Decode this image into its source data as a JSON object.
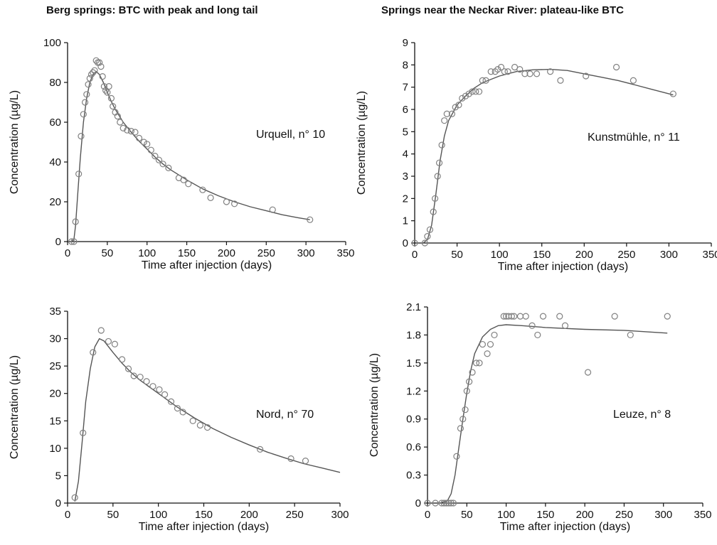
{
  "titles": {
    "left": "Berg springs: BTC with peak and long tail",
    "right": "Springs near the Neckar River: plateau-like BTC"
  },
  "colors": {
    "axis": "#111111",
    "curve": "#555555",
    "marker": "#808080"
  },
  "chart_data": [
    {
      "type": "scatter",
      "annotation": "Urquell, n° 10",
      "xlabel": "Time after injection (days)",
      "ylabel": "Concentration (µg/L)",
      "xlim": [
        0,
        350
      ],
      "ylim": [
        0,
        100
      ],
      "xticks": [
        0,
        50,
        100,
        150,
        200,
        250,
        300,
        350
      ],
      "yticks": [
        0,
        20,
        40,
        60,
        80,
        100
      ],
      "observed": [
        [
          5,
          0
        ],
        [
          8,
          0
        ],
        [
          10,
          10
        ],
        [
          14,
          34
        ],
        [
          17,
          53
        ],
        [
          20,
          64
        ],
        [
          22,
          70
        ],
        [
          24,
          74
        ],
        [
          26,
          79
        ],
        [
          28,
          82
        ],
        [
          30,
          84
        ],
        [
          32,
          85
        ],
        [
          34,
          86
        ],
        [
          36,
          91
        ],
        [
          38,
          90
        ],
        [
          40,
          90
        ],
        [
          42,
          88
        ],
        [
          44,
          83
        ],
        [
          46,
          78
        ],
        [
          48,
          76
        ],
        [
          50,
          75
        ],
        [
          52,
          78
        ],
        [
          55,
          72
        ],
        [
          57,
          68
        ],
        [
          60,
          65
        ],
        [
          63,
          63
        ],
        [
          66,
          60
        ],
        [
          70,
          57
        ],
        [
          75,
          56
        ],
        [
          80,
          55.5
        ],
        [
          85,
          55
        ],
        [
          90,
          52
        ],
        [
          96,
          50
        ],
        [
          100,
          49
        ],
        [
          105,
          46
        ],
        [
          110,
          43
        ],
        [
          115,
          41
        ],
        [
          120,
          39
        ],
        [
          127,
          37
        ],
        [
          140,
          32
        ],
        [
          146,
          31
        ],
        [
          152,
          29
        ],
        [
          170,
          26
        ],
        [
          180,
          22
        ],
        [
          200,
          20
        ],
        [
          210,
          19
        ],
        [
          258,
          16
        ],
        [
          305,
          11
        ]
      ],
      "fitted": [
        [
          5,
          0
        ],
        [
          8,
          1
        ],
        [
          10,
          8
        ],
        [
          13,
          25
        ],
        [
          16,
          42
        ],
        [
          20,
          60
        ],
        [
          24,
          72
        ],
        [
          28,
          80
        ],
        [
          32,
          84
        ],
        [
          36,
          85.5
        ],
        [
          40,
          84
        ],
        [
          45,
          80
        ],
        [
          50,
          75
        ],
        [
          55,
          70.5
        ],
        [
          60,
          66.5
        ],
        [
          70,
          60
        ],
        [
          80,
          55
        ],
        [
          90,
          50.5
        ],
        [
          100,
          46.5
        ],
        [
          110,
          42.5
        ],
        [
          120,
          39
        ],
        [
          130,
          36
        ],
        [
          140,
          33.5
        ],
        [
          150,
          31
        ],
        [
          170,
          26.5
        ],
        [
          190,
          23
        ],
        [
          210,
          20
        ],
        [
          230,
          17.5
        ],
        [
          250,
          15.5
        ],
        [
          270,
          13.5
        ],
        [
          290,
          12
        ],
        [
          305,
          11
        ]
      ]
    },
    {
      "type": "scatter",
      "annotation": "Kunstmühle, n° 11",
      "xlabel": "Time after injection (days)",
      "ylabel": "Concentration (µg/L)",
      "xlim": [
        0,
        350
      ],
      "ylim": [
        0,
        9
      ],
      "xticks": [
        0,
        50,
        100,
        150,
        200,
        250,
        300,
        350
      ],
      "yticks": [
        0,
        1,
        2,
        3,
        4,
        5,
        6,
        7,
        8,
        9
      ],
      "observed": [
        [
          0,
          0
        ],
        [
          12,
          0
        ],
        [
          15,
          0.3
        ],
        [
          18,
          0.6
        ],
        [
          22,
          1.4
        ],
        [
          24,
          2
        ],
        [
          27,
          3
        ],
        [
          29,
          3.6
        ],
        [
          32,
          4.4
        ],
        [
          35,
          5.5
        ],
        [
          38,
          5.8
        ],
        [
          44,
          5.8
        ],
        [
          48,
          6.1
        ],
        [
          52,
          6.2
        ],
        [
          56,
          6.5
        ],
        [
          60,
          6.6
        ],
        [
          64,
          6.7
        ],
        [
          68,
          6.8
        ],
        [
          72,
          6.8
        ],
        [
          76,
          6.8
        ],
        [
          80,
          7.3
        ],
        [
          84,
          7.3
        ],
        [
          90,
          7.7
        ],
        [
          95,
          7.7
        ],
        [
          98,
          7.8
        ],
        [
          102,
          7.9
        ],
        [
          106,
          7.7
        ],
        [
          110,
          7.7
        ],
        [
          118,
          7.9
        ],
        [
          124,
          7.8
        ],
        [
          130,
          7.6
        ],
        [
          136,
          7.6
        ],
        [
          144,
          7.6
        ],
        [
          160,
          7.7
        ],
        [
          172,
          7.3
        ],
        [
          202,
          7.5
        ],
        [
          238,
          7.9
        ],
        [
          258,
          7.3
        ],
        [
          305,
          6.7
        ]
      ],
      "fitted": [
        [
          10,
          0
        ],
        [
          15,
          0.15
        ],
        [
          20,
          0.8
        ],
        [
          25,
          2.2
        ],
        [
          30,
          3.7
        ],
        [
          35,
          4.8
        ],
        [
          40,
          5.5
        ],
        [
          50,
          6.2
        ],
        [
          60,
          6.6
        ],
        [
          70,
          6.95
        ],
        [
          80,
          7.2
        ],
        [
          100,
          7.5
        ],
        [
          120,
          7.7
        ],
        [
          140,
          7.78
        ],
        [
          160,
          7.8
        ],
        [
          180,
          7.75
        ],
        [
          200,
          7.6
        ],
        [
          220,
          7.45
        ],
        [
          240,
          7.3
        ],
        [
          260,
          7.1
        ],
        [
          280,
          6.9
        ],
        [
          305,
          6.65
        ]
      ]
    },
    {
      "type": "scatter",
      "annotation": "Nord, n° 70",
      "xlabel": "Time after injection (days)",
      "ylabel": "Concentration (µg/L)",
      "xlim": [
        0,
        300
      ],
      "ylim": [
        0,
        35
      ],
      "xticks": [
        0,
        50,
        100,
        150,
        200,
        250,
        300
      ],
      "yticks": [
        0,
        5,
        10,
        15,
        20,
        25,
        30,
        35
      ],
      "observed": [
        [
          8,
          1
        ],
        [
          17,
          12.8
        ],
        [
          28,
          27.5
        ],
        [
          37,
          31.5
        ],
        [
          45,
          29.5
        ],
        [
          52,
          29
        ],
        [
          60,
          26.2
        ],
        [
          67,
          24.5
        ],
        [
          73,
          23.2
        ],
        [
          80,
          23
        ],
        [
          87,
          22.2
        ],
        [
          94,
          21.3
        ],
        [
          101,
          20.7
        ],
        [
          107,
          19.8
        ],
        [
          114,
          18.5
        ],
        [
          121,
          17.3
        ],
        [
          127,
          16.6
        ],
        [
          138,
          15
        ],
        [
          146,
          14.2
        ],
        [
          154,
          13.8
        ],
        [
          212,
          9.8
        ],
        [
          246,
          8.1
        ],
        [
          262,
          7.7
        ]
      ],
      "fitted": [
        [
          8,
          0.3
        ],
        [
          12,
          4
        ],
        [
          16,
          11
        ],
        [
          20,
          18.5
        ],
        [
          25,
          24.5
        ],
        [
          30,
          28.5
        ],
        [
          35,
          30
        ],
        [
          40,
          29.6
        ],
        [
          50,
          27.5
        ],
        [
          60,
          25.5
        ],
        [
          70,
          23.8
        ],
        [
          80,
          22.4
        ],
        [
          90,
          21.2
        ],
        [
          100,
          20
        ],
        [
          120,
          17.6
        ],
        [
          140,
          15.5
        ],
        [
          160,
          13.6
        ],
        [
          180,
          12
        ],
        [
          200,
          10.6
        ],
        [
          220,
          9.3
        ],
        [
          240,
          8.2
        ],
        [
          260,
          7.2
        ],
        [
          280,
          6.4
        ],
        [
          300,
          5.6
        ]
      ]
    },
    {
      "type": "scatter",
      "annotation": "Leuze, n° 8",
      "xlabel": "Time after injection (days)",
      "ylabel": "Concentration (µg/L)",
      "xlim": [
        0,
        350
      ],
      "ylim": [
        0,
        2.1
      ],
      "xticks": [
        0,
        50,
        100,
        150,
        200,
        250,
        300,
        350
      ],
      "yticks": [
        "0",
        "0.3",
        "0.6",
        "0.9",
        "1.2",
        "1.5",
        "1.8",
        "2.1"
      ],
      "observed": [
        [
          0,
          0
        ],
        [
          10,
          0
        ],
        [
          18,
          0
        ],
        [
          21,
          0
        ],
        [
          24,
          0
        ],
        [
          27,
          0
        ],
        [
          30,
          0
        ],
        [
          33,
          0
        ],
        [
          37,
          0.5
        ],
        [
          42,
          0.8
        ],
        [
          45,
          0.9
        ],
        [
          48,
          1
        ],
        [
          50,
          1.2
        ],
        [
          53,
          1.3
        ],
        [
          57,
          1.4
        ],
        [
          62,
          1.5
        ],
        [
          66,
          1.5
        ],
        [
          70,
          1.7
        ],
        [
          76,
          1.6
        ],
        [
          80,
          1.7
        ],
        [
          85,
          1.8
        ],
        [
          97,
          2
        ],
        [
          100,
          2
        ],
        [
          103,
          2
        ],
        [
          107,
          2
        ],
        [
          110,
          2
        ],
        [
          118,
          2
        ],
        [
          125,
          2
        ],
        [
          133,
          1.9
        ],
        [
          140,
          1.8
        ],
        [
          147,
          2
        ],
        [
          168,
          2
        ],
        [
          175,
          1.9
        ],
        [
          204,
          1.4
        ],
        [
          238,
          2
        ],
        [
          258,
          1.8
        ],
        [
          305,
          2
        ]
      ],
      "fitted": [
        [
          15,
          0
        ],
        [
          25,
          0.02
        ],
        [
          30,
          0.1
        ],
        [
          35,
          0.3
        ],
        [
          40,
          0.6
        ],
        [
          45,
          0.9
        ],
        [
          50,
          1.18
        ],
        [
          55,
          1.42
        ],
        [
          60,
          1.6
        ],
        [
          70,
          1.78
        ],
        [
          80,
          1.86
        ],
        [
          90,
          1.9
        ],
        [
          100,
          1.91
        ],
        [
          120,
          1.9
        ],
        [
          150,
          1.88
        ],
        [
          200,
          1.86
        ],
        [
          250,
          1.85
        ],
        [
          305,
          1.82
        ]
      ]
    }
  ]
}
